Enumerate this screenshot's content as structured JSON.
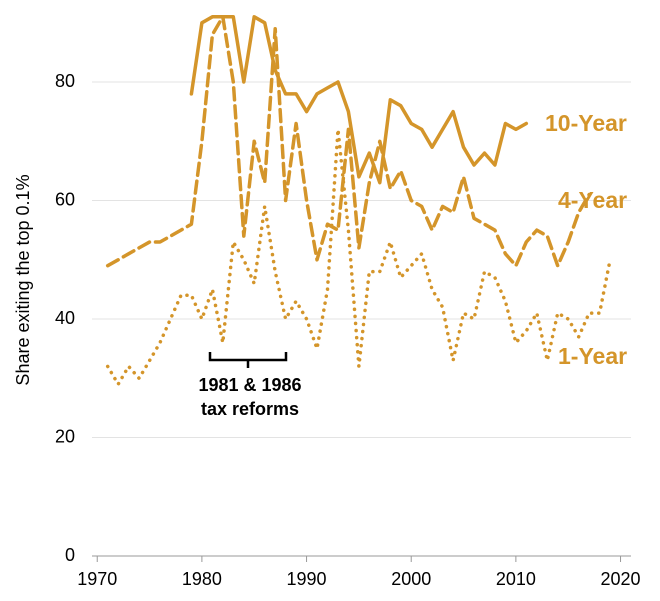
{
  "chart_data": {
    "type": "line",
    "y_label": "Share exiting the top 0.1%",
    "annotation": [
      "1981 & 1986",
      "tax reforms"
    ],
    "x": [
      1971,
      1972,
      1973,
      1974,
      1975,
      1976,
      1977,
      1978,
      1979,
      1980,
      1981,
      1982,
      1983,
      1984,
      1985,
      1986,
      1987,
      1988,
      1989,
      1990,
      1991,
      1992,
      1993,
      1994,
      1995,
      1996,
      1997,
      1998,
      1999,
      2000,
      2001,
      2002,
      2003,
      2004,
      2005,
      2006,
      2007,
      2008,
      2009,
      2010,
      2011,
      2012,
      2013,
      2014,
      2015,
      2016,
      2017,
      2018,
      2019
    ],
    "series": [
      {
        "name": "10-Year",
        "color": "#d4952a",
        "style": "solid",
        "values": [
          null,
          null,
          null,
          null,
          null,
          null,
          null,
          null,
          78,
          90,
          91,
          91,
          91,
          80,
          91,
          90,
          82,
          78,
          78,
          75,
          78,
          79,
          80,
          75,
          64,
          68,
          63,
          77,
          76,
          73,
          72,
          69,
          72,
          75,
          69,
          66,
          68,
          66,
          73,
          72,
          73,
          null,
          null,
          null,
          null,
          null,
          null,
          null,
          null
        ]
      },
      {
        "name": "4-Year",
        "color": "#d4952a",
        "style": "dashed",
        "values": [
          49,
          50,
          51,
          52,
          53,
          53,
          54,
          55,
          56,
          70,
          88,
          91,
          80,
          54,
          70,
          63,
          89,
          60,
          73,
          60,
          50,
          56,
          55,
          72,
          52,
          63,
          70,
          62,
          65,
          60,
          59,
          55,
          59,
          58,
          64,
          57,
          56,
          55,
          51,
          49,
          53,
          55,
          54,
          49,
          53,
          58,
          61,
          null,
          null
        ]
      },
      {
        "name": "1-Year",
        "color": "#d4952a",
        "style": "dotted",
        "values": [
          32,
          29,
          32,
          30,
          33,
          36,
          40,
          44,
          44,
          40,
          45,
          36,
          53,
          50,
          46,
          59,
          48,
          40,
          43,
          40,
          35,
          45,
          72,
          55,
          32,
          48,
          48,
          53,
          47,
          49,
          51,
          45,
          42,
          33,
          41,
          40,
          48,
          47,
          43,
          36,
          38,
          41,
          33,
          41,
          40,
          37,
          41,
          41,
          50
        ]
      }
    ],
    "xlim": [
      1969.5,
      2021
    ],
    "xticks": [
      1970,
      1980,
      1990,
      2000,
      2010,
      2020
    ],
    "ylim": [
      0,
      93
    ],
    "yticks": [
      0,
      20,
      40,
      60,
      80
    ],
    "grid": true
  }
}
